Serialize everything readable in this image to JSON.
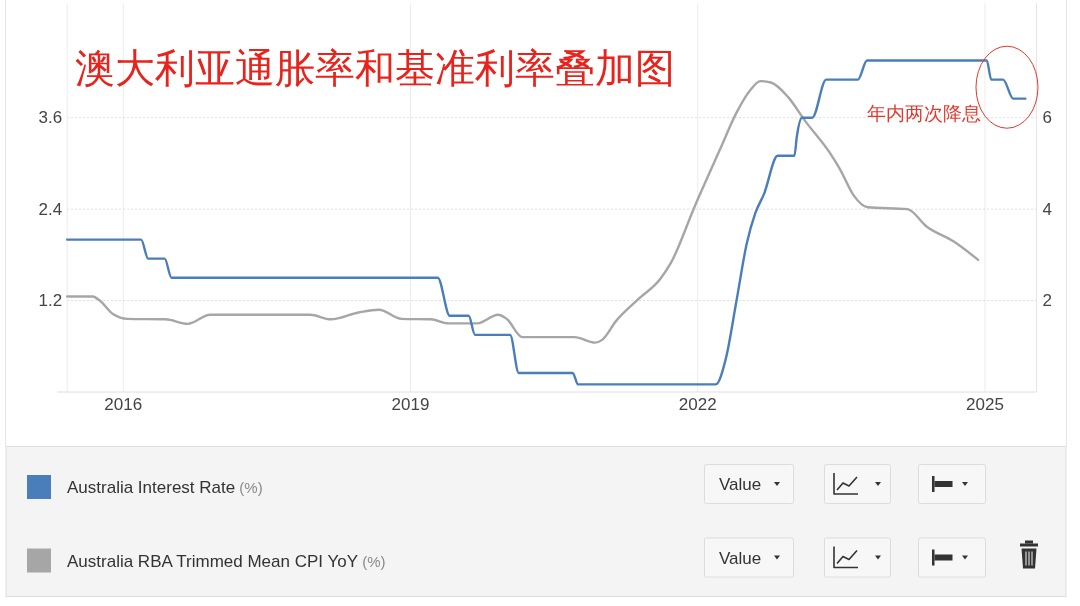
{
  "chart_data": {
    "type": "line",
    "title": "澳大利亚通胀率和基准利率叠加图",
    "series": [
      {
        "name": "Australia Interest Rate (%)",
        "color": "#4a7ebb",
        "x": [
          "2015-06-01",
          "2016-03-09",
          "2016-04-05",
          "2016-06-07",
          "2016-07-03",
          "2019-04-15",
          "2019-05-31",
          "2019-08-11",
          "2019-09-04",
          "2020-01-16",
          "2020-02-18",
          "2020-09-11",
          "2020-10-01",
          "2022-03-11",
          "2022-04-19",
          "2022-05-29",
          "2022-07-07",
          "2022-08-09",
          "2022-09-11",
          "2022-11-02",
          "2023-01-05",
          "2023-01-14",
          "2023-02-03",
          "2023-03-14",
          "2023-05-06",
          "2023-09-04",
          "2023-10-09",
          "2025-01-08",
          "2025-01-25",
          "2025-03-11",
          "2025-04-19",
          "2025-06-04"
        ],
        "values": [
          2.0,
          2.0,
          1.75,
          1.75,
          1.5,
          1.5,
          1.0,
          1.0,
          0.75,
          0.75,
          0.25,
          0.25,
          0.1,
          0.1,
          0.45,
          1.2,
          1.95,
          2.35,
          2.6,
          3.1,
          3.1,
          3.35,
          3.6,
          3.6,
          4.1,
          4.1,
          4.35,
          4.35,
          4.1,
          4.1,
          3.85,
          3.85
        ]
      },
      {
        "name": "Australia RBA Trimmed Mean CPI YoY (%)",
        "color": "#a6a6a6",
        "axis": "y2",
        "x": [
          "2015-06-01",
          "2015-09-07",
          "2015-10-03",
          "2015-11-24",
          "2016-01-17",
          "2016-06-10",
          "2016-09-03",
          "2016-11-27",
          "2017-12-14",
          "2018-03-03",
          "2018-06-17",
          "2018-09-03",
          "2018-11-27",
          "2019-03-20",
          "2019-05-25",
          "2019-09-13",
          "2019-12-01",
          "2020-01-03",
          "2020-03-03",
          "2020-09-18",
          "2020-12-05",
          "2021-01-01",
          "2021-02-23",
          "2021-05-13",
          "2021-08-13",
          "2021-09-21",
          "2021-12-22",
          "2022-03-25",
          "2022-05-29",
          "2022-07-20",
          "2022-08-28",
          "2022-10-07",
          "2022-12-12",
          "2023-02-16",
          "2023-05-19",
          "2023-06-28",
          "2023-08-19",
          "2023-10-11",
          "2024-03-11",
          "2024-05-23",
          "2024-09-04",
          "2024-12-06"
        ],
        "values": [
          2.09,
          2.09,
          2.0,
          1.7,
          1.6,
          1.59,
          1.49,
          1.69,
          1.69,
          1.59,
          1.74,
          1.8,
          1.6,
          1.59,
          1.5,
          1.5,
          1.69,
          1.6,
          1.2,
          1.2,
          1.08,
          1.14,
          1.55,
          2.0,
          2.49,
          2.83,
          4.08,
          5.28,
          6.11,
          6.6,
          6.8,
          6.77,
          6.45,
          5.92,
          5.24,
          4.87,
          4.3,
          4.04,
          4.0,
          3.62,
          3.29,
          2.89
        ]
      }
    ],
    "xlim": [
      "2015-06-01",
      "2025-07-17"
    ],
    "xticks": [
      "2016",
      "2019",
      "2022",
      "2025"
    ],
    "ylim": [
      0,
      5.1
    ],
    "yticks": [
      1.2,
      2.4,
      3.6
    ],
    "y2lim": [
      0,
      8.5
    ],
    "y2ticks": [
      2,
      4,
      6
    ],
    "grid": true,
    "legend": "bottom",
    "annotations": [
      {
        "text": "年内两次降息",
        "x": "2025-03-26",
        "y": 4.0
      },
      "Value",
      "Value"
    ]
  }
}
